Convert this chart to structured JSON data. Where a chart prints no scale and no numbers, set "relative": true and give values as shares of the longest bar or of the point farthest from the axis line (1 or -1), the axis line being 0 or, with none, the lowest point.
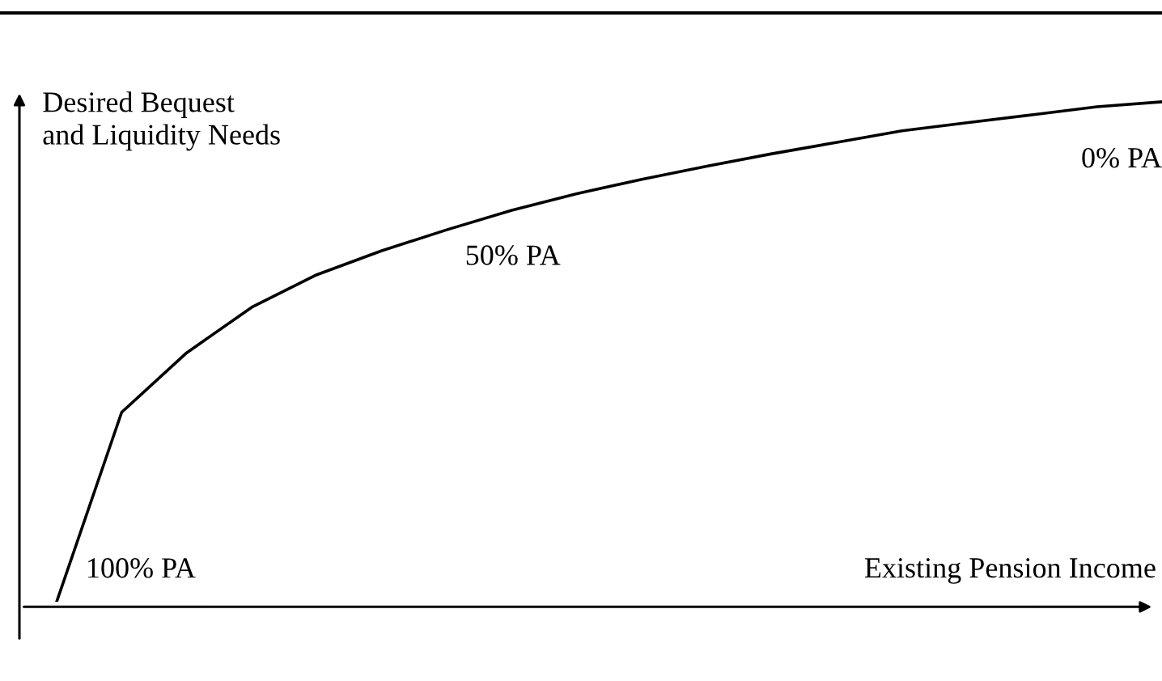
{
  "chart_data": {
    "type": "line",
    "relative": true,
    "categories": [
      null,
      null,
      null,
      null,
      null,
      null,
      null,
      null,
      null,
      null,
      null,
      null,
      null,
      null,
      null,
      null,
      null,
      null
    ],
    "series": [
      {
        "color": "#000000",
        "values": [
          0,
          0.379,
          0.498,
          0.589,
          0.654,
          0.702,
          0.744,
          0.783,
          0.816,
          0.845,
          0.871,
          0.896,
          0.919,
          0.942,
          0.958,
          0.974,
          0.99,
          1
        ]
      }
    ],
    "xlabel": "Existing Pension Income",
    "ylabel": "Desired Bequest\nand Liquidity Needs",
    "annotations": [
      "100% PA",
      "50% PA",
      "0% PA"
    ],
    "legend": false,
    "marker": "none",
    "line_style": "solid"
  }
}
